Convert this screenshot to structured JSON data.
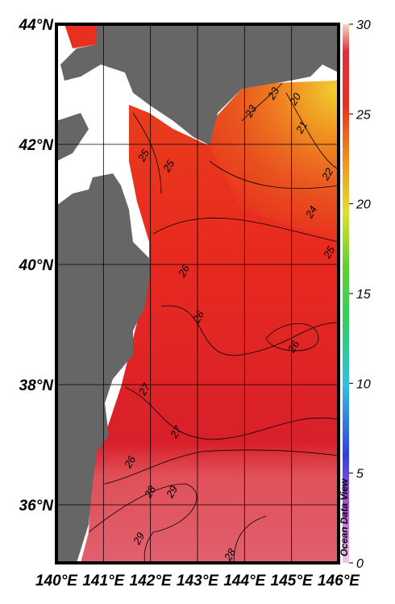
{
  "map": {
    "lat_ticks": [
      {
        "value": 44,
        "label": "44°N"
      },
      {
        "value": 42,
        "label": "42°N"
      },
      {
        "value": 40,
        "label": "40°N"
      },
      {
        "value": 38,
        "label": "38°N"
      },
      {
        "value": 36,
        "label": "36°N"
      }
    ],
    "lon_ticks": [
      {
        "value": 140,
        "label": "140°E"
      },
      {
        "value": 141,
        "label": "141°E"
      },
      {
        "value": 142,
        "label": "142°E"
      },
      {
        "value": 143,
        "label": "143°E"
      },
      {
        "value": 144,
        "label": "144°E"
      },
      {
        "value": 145,
        "label": "145°E"
      },
      {
        "value": 146,
        "label": "146°E"
      }
    ],
    "colorbar": {
      "range": [
        0,
        30
      ],
      "ticks": [
        0,
        5,
        10,
        15,
        20,
        25,
        30
      ]
    },
    "contour_labels": [
      25,
      25,
      23,
      23,
      20,
      21,
      22,
      24,
      25,
      26,
      26,
      26,
      27,
      27,
      26,
      28,
      29,
      29,
      28
    ],
    "credit": "Ocean Data View"
  }
}
